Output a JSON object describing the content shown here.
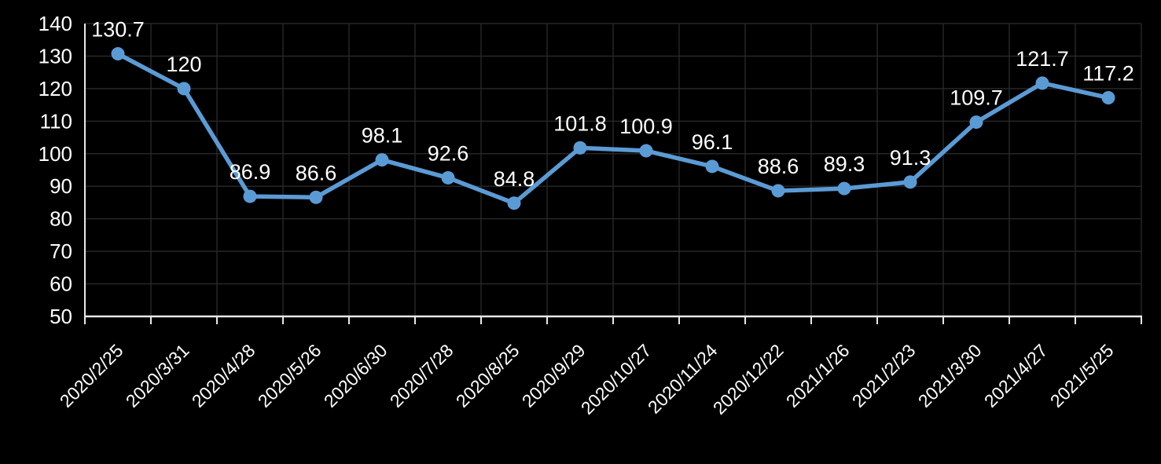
{
  "chart_data": {
    "type": "line",
    "title": "",
    "xlabel": "",
    "ylabel": "",
    "categories": [
      "2020/2/25",
      "2020/3/31",
      "2020/4/28",
      "2020/5/26",
      "2020/6/30",
      "2020/7/28",
      "2020/8/25",
      "2020/9/29",
      "2020/10/27",
      "2020/11/24",
      "2020/12/22",
      "2021/1/26",
      "2021/2/23",
      "2021/3/30",
      "2021/4/27",
      "2021/5/25"
    ],
    "values": [
      130.7,
      120,
      86.9,
      86.6,
      98.1,
      92.6,
      84.8,
      101.8,
      100.9,
      96.1,
      88.6,
      89.3,
      91.3,
      109.7,
      121.7,
      117.2
    ],
    "data_labels": [
      "130.7",
      "120",
      "86.9",
      "86.6",
      "98.1",
      "92.6",
      "84.8",
      "101.8",
      "100.9",
      "96.1",
      "88.6",
      "89.3",
      "91.3",
      "109.7",
      "121.7",
      "117.2"
    ],
    "y_ticks": [
      50,
      60,
      70,
      80,
      90,
      100,
      110,
      120,
      130,
      140
    ],
    "ylim": [
      50,
      140
    ],
    "grid": true,
    "legend": "none",
    "colors": {
      "background": "#000000",
      "line": "#5B9BD5",
      "marker": "#5B9BD5",
      "grid": "#262626",
      "axis": "#E8E8E8",
      "text": "#FFFFFF"
    }
  }
}
